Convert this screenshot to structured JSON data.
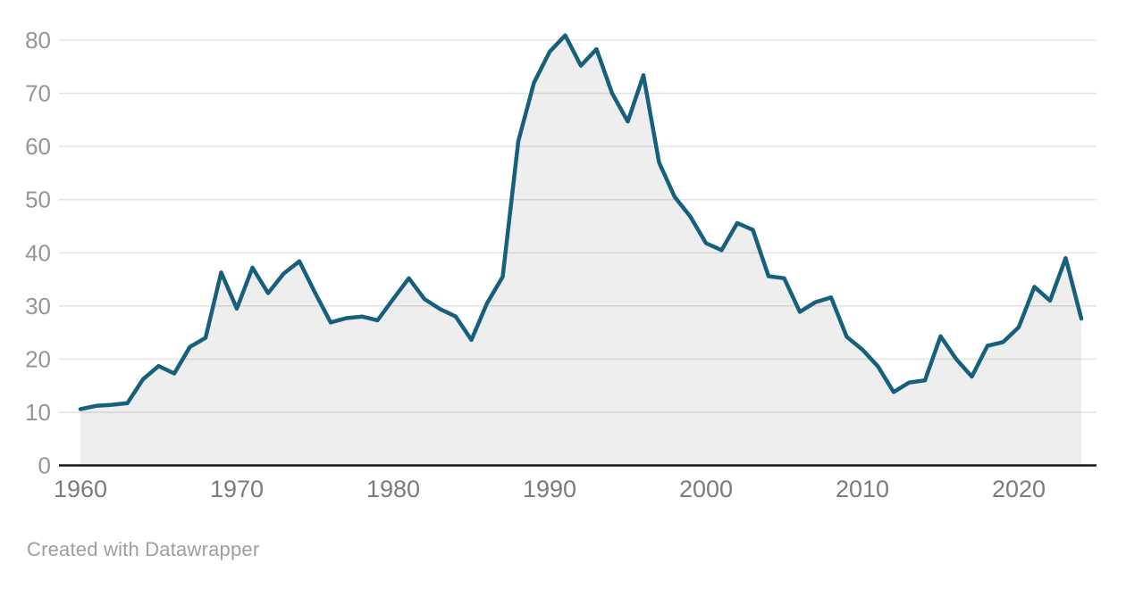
{
  "footer": {
    "credit": "Created with Datawrapper"
  },
  "chart_data": {
    "type": "area",
    "title": "",
    "x_label": "",
    "y_label": "",
    "x": [
      1960,
      1961,
      1962,
      1963,
      1964,
      1965,
      1966,
      1967,
      1968,
      1969,
      1970,
      1971,
      1972,
      1973,
      1974,
      1975,
      1976,
      1977,
      1978,
      1979,
      1980,
      1981,
      1982,
      1983,
      1984,
      1985,
      1986,
      1987,
      1988,
      1989,
      1990,
      1991,
      1992,
      1993,
      1994,
      1995,
      1996,
      1997,
      1998,
      1999,
      2000,
      2001,
      2002,
      2003,
      2004,
      2005,
      2006,
      2007,
      2008,
      2009,
      2010,
      2011,
      2012,
      2013,
      2014,
      2015,
      2016,
      2017,
      2018,
      2019,
      2020,
      2021,
      2022,
      2023,
      2024
    ],
    "values": [
      10.6,
      11.2,
      11.4,
      11.7,
      16.2,
      18.7,
      17.3,
      22.3,
      24.0,
      36.3,
      29.5,
      37.2,
      32.4,
      36.1,
      38.4,
      32.5,
      26.9,
      27.7,
      28.0,
      27.3,
      31.3,
      35.2,
      31.3,
      29.4,
      28.0,
      23.6,
      30.5,
      35.5,
      61.0,
      72.0,
      77.8,
      80.9,
      75.2,
      78.3,
      70.0,
      64.7,
      73.4,
      57.0,
      50.5,
      46.8,
      41.8,
      40.5,
      45.6,
      44.3,
      35.6,
      35.2,
      28.9,
      30.7,
      31.6,
      24.2,
      21.8,
      18.6,
      13.8,
      15.6,
      16.0,
      24.3,
      20.0,
      16.7,
      22.5,
      23.2,
      26.0,
      33.6,
      31.0,
      39.0,
      27.6
    ],
    "xlim": [
      1960,
      2024
    ],
    "ylim": [
      0,
      80
    ],
    "y_tick_labels": [
      "0",
      "10",
      "20",
      "30",
      "40",
      "50",
      "60",
      "70",
      "80"
    ],
    "y_tick_values": [
      0,
      10,
      20,
      30,
      40,
      50,
      60,
      70,
      80
    ],
    "x_tick_labels": [
      "1960",
      "1970",
      "1980",
      "1990",
      "2000",
      "2010",
      "2020"
    ],
    "x_tick_values": [
      1960,
      1970,
      1980,
      1990,
      2000,
      2010,
      2020
    ],
    "grid": "horizontal",
    "legend": "none",
    "colors": {
      "line": "#17607d",
      "area_fill": "rgba(0,0,0,0.066)",
      "gridline": "#e4e4e4",
      "axis_line": "#161616",
      "y_tick_text": "#969696",
      "x_tick_text": "#7b7b7b"
    }
  }
}
